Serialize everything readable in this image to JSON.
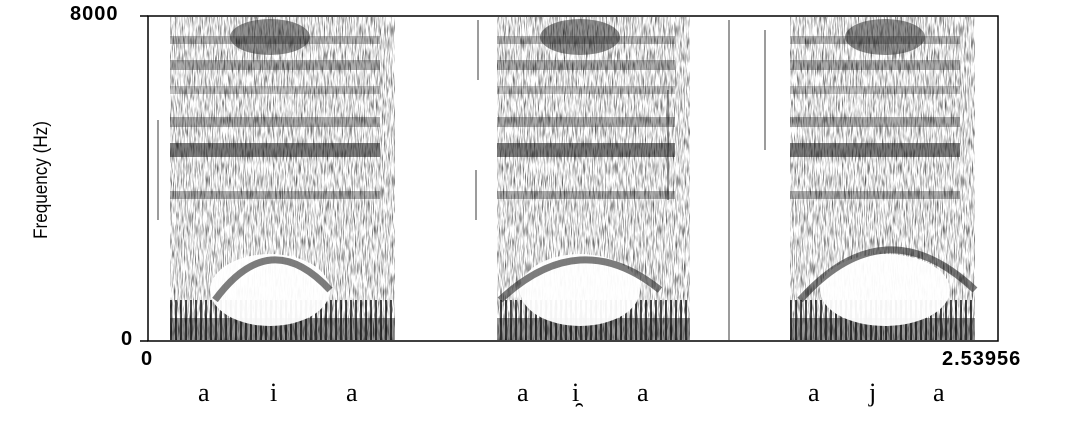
{
  "axis": {
    "y_label": "Frequency (Hz)",
    "y_max_label": "8000",
    "y_min_label": "0",
    "x_min_label": "0",
    "x_max_label": "2.53956"
  },
  "segments": {
    "utt1": [
      "a",
      "i",
      "a"
    ],
    "utt2": [
      "a",
      "i̯",
      "a"
    ],
    "utt3": [
      "a",
      "j",
      "a"
    ]
  }
}
